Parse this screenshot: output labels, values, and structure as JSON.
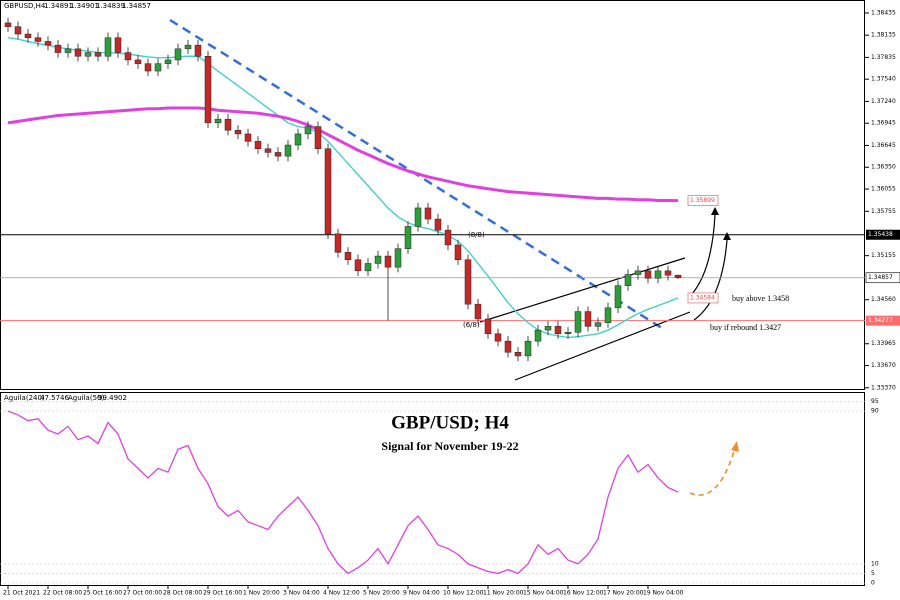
{
  "chart_data": [
    {
      "type": "candlestick",
      "symbol": "GBPUSD,H4",
      "categories": [
        "21 Oct 2021",
        null,
        null,
        null,
        "22 Oct 08:00",
        null,
        null,
        null,
        "25 Oct 16:00",
        null,
        null,
        null,
        "27 Oct 00:00",
        null,
        null,
        null,
        "28 Oct 08:00",
        null,
        null,
        null,
        "29 Oct 16:00",
        null,
        null,
        null,
        "1 Nov 20:00",
        null,
        null,
        null,
        "3 Nov 04:00",
        null,
        null,
        null,
        "4 Nov 12:00",
        null,
        null,
        null,
        "5 Nov 20:00",
        null,
        null,
        null,
        "9 Nov 04:00",
        null,
        null,
        null,
        "10 Nov 12:00",
        null,
        null,
        null,
        "11 Nov 20:00",
        null,
        null,
        null,
        "15 Nov 04:00",
        null,
        null,
        null,
        "16 Nov 12:00",
        null,
        null,
        null,
        "17 Nov 20:00",
        null,
        null,
        null,
        "19 Nov 04:00",
        null,
        null,
        null
      ],
      "open": [
        1.383,
        1.3825,
        1.3815,
        1.381,
        1.3805,
        1.38,
        1.379,
        1.3795,
        1.3785,
        1.379,
        1.3785,
        1.381,
        1.379,
        1.378,
        1.3775,
        1.3765,
        1.3775,
        1.378,
        1.3795,
        1.38,
        1.3785,
        1.3695,
        1.37,
        1.3685,
        1.368,
        1.367,
        1.366,
        1.3655,
        1.365,
        1.3665,
        1.368,
        1.369,
        1.366,
        1.3545,
        1.352,
        1.351,
        1.3495,
        1.3505,
        1.3515,
        1.35,
        1.3525,
        1.3555,
        1.358,
        1.3565,
        1.355,
        1.353,
        1.351,
        1.345,
        1.343,
        1.341,
        1.34,
        1.3385,
        1.338,
        1.34,
        1.3415,
        1.342,
        1.341,
        1.3412,
        1.344,
        1.342,
        1.3425,
        1.3445,
        1.3475,
        1.349,
        1.3495,
        1.3485,
        1.3495,
        1.34891
      ],
      "high": [
        1.3837,
        1.3832,
        1.3822,
        1.3817,
        1.3812,
        1.3807,
        1.3802,
        1.3802,
        1.3797,
        1.3797,
        1.3817,
        1.3817,
        1.3797,
        1.3787,
        1.3782,
        1.3782,
        1.3787,
        1.3802,
        1.3807,
        1.3807,
        1.3792,
        1.3707,
        1.3707,
        1.3692,
        1.3687,
        1.3677,
        1.3667,
        1.3662,
        1.3672,
        1.3687,
        1.3697,
        1.3697,
        1.3667,
        1.3552,
        1.3527,
        1.3517,
        1.3512,
        1.3522,
        1.3522,
        1.3532,
        1.3562,
        1.3587,
        1.3587,
        1.3572,
        1.3557,
        1.3537,
        1.3517,
        1.3457,
        1.3437,
        1.3417,
        1.3407,
        1.3392,
        1.3407,
        1.3422,
        1.3427,
        1.3427,
        1.3419,
        1.3447,
        1.3447,
        1.3432,
        1.3452,
        1.3482,
        1.3497,
        1.3502,
        1.3502,
        1.3502,
        1.3502,
        1.34901
      ],
      "low": [
        1.3818,
        1.3808,
        1.3803,
        1.3798,
        1.3793,
        1.3783,
        1.3783,
        1.3778,
        1.3778,
        1.3778,
        1.3778,
        1.3783,
        1.3773,
        1.3768,
        1.3758,
        1.3758,
        1.3768,
        1.3773,
        1.3788,
        1.3778,
        1.3688,
        1.3688,
        1.3678,
        1.3673,
        1.3663,
        1.3653,
        1.3648,
        1.3643,
        1.3643,
        1.3658,
        1.3673,
        1.3653,
        1.3538,
        1.3513,
        1.3503,
        1.3488,
        1.3488,
        1.3498,
        1.3428,
        1.3493,
        1.3518,
        1.3548,
        1.3558,
        1.3543,
        1.3523,
        1.3503,
        1.3443,
        1.3423,
        1.3403,
        1.3393,
        1.3378,
        1.3373,
        1.3373,
        1.3393,
        1.3408,
        1.3403,
        1.3403,
        1.3405,
        1.3413,
        1.3413,
        1.3418,
        1.3438,
        1.3468,
        1.3483,
        1.3478,
        1.3478,
        1.3482,
        1.34839
      ],
      "close": [
        1.3825,
        1.3815,
        1.381,
        1.3805,
        1.38,
        1.379,
        1.3795,
        1.3785,
        1.379,
        1.3785,
        1.381,
        1.379,
        1.378,
        1.3775,
        1.3765,
        1.3775,
        1.378,
        1.3795,
        1.38,
        1.3785,
        1.3695,
        1.37,
        1.3685,
        1.368,
        1.367,
        1.366,
        1.3655,
        1.365,
        1.3665,
        1.368,
        1.369,
        1.366,
        1.3545,
        1.352,
        1.351,
        1.3495,
        1.3505,
        1.3515,
        1.35,
        1.3525,
        1.3555,
        1.358,
        1.3565,
        1.355,
        1.353,
        1.351,
        1.345,
        1.343,
        1.341,
        1.34,
        1.3385,
        1.338,
        1.34,
        1.3415,
        1.342,
        1.341,
        1.3412,
        1.344,
        1.342,
        1.3425,
        1.3445,
        1.3475,
        1.349,
        1.3495,
        1.3485,
        1.3495,
        1.34891,
        1.34857
      ],
      "up_color": "#2e9e3a",
      "down_color": "#c62828",
      "overlays": [
        {
          "color": "#45cfcf",
          "values": [
            1.381,
            1.3808,
            1.3805,
            1.3802,
            1.38,
            1.3797,
            1.3795,
            1.3793,
            1.3792,
            1.379,
            1.379,
            1.3789,
            1.3788,
            1.3786,
            1.3784,
            1.3783,
            1.3783,
            1.3784,
            1.3785,
            1.3785,
            1.3775,
            1.3765,
            1.3755,
            1.3745,
            1.3735,
            1.3725,
            1.3715,
            1.3705,
            1.3695,
            1.369,
            1.3688,
            1.3682,
            1.367,
            1.3655,
            1.364,
            1.3625,
            1.361,
            1.3595,
            1.358,
            1.3568,
            1.356,
            1.3555,
            1.3552,
            1.3548,
            1.3543,
            1.3535,
            1.3522,
            1.3505,
            1.3488,
            1.347,
            1.3452,
            1.3437,
            1.3425,
            1.3415,
            1.341,
            1.3407,
            1.3405,
            1.3406,
            1.3408,
            1.341,
            1.3415,
            1.3422,
            1.343,
            1.3437,
            1.3443,
            1.3448,
            1.3453,
            1.34584
          ]
        },
        {
          "color": "#e040e0",
          "values": [
            1.3695,
            1.3697,
            1.3699,
            1.3701,
            1.3703,
            1.3705,
            1.3706,
            1.3707,
            1.3708,
            1.3709,
            1.371,
            1.3711,
            1.3712,
            1.3713,
            1.3714,
            1.3714,
            1.3715,
            1.3715,
            1.3715,
            1.3715,
            1.3714,
            1.3712,
            1.3711,
            1.371,
            1.3709,
            1.3708,
            1.3706,
            1.3704,
            1.3701,
            1.3697,
            1.3692,
            1.3686,
            1.3679,
            1.3672,
            1.3665,
            1.3658,
            1.3652,
            1.3646,
            1.364,
            1.3635,
            1.363,
            1.3626,
            1.3622,
            1.3619,
            1.3616,
            1.3613,
            1.361,
            1.3608,
            1.3606,
            1.3604,
            1.3602,
            1.3601,
            1.36,
            1.3599,
            1.3598,
            1.3597,
            1.3596,
            1.3595,
            1.3594,
            1.3593,
            1.3593,
            1.3592,
            1.3592,
            1.3591,
            1.3591,
            1.359,
            1.359,
            1.35899
          ]
        }
      ],
      "ylim": [
        1.3334,
        1.3861
      ],
      "yticks": [
        1.38435,
        1.38135,
        1.37835,
        {
          "value": 1.3754,
          "label": "1.37540"
        },
        {
          "value": 1.3724,
          "label": "1.37240"
        },
        1.36945,
        1.36645,
        {
          "value": 1.3635,
          "label": "1.36350"
        },
        1.36055,
        1.35755,
        1.35155,
        {
          "value": 1.3456,
          "label": "1.34560"
        },
        1.33965,
        {
          "value": 1.3367,
          "label": "1.33670"
        },
        {
          "value": 1.3337,
          "label": "1.33370"
        }
      ],
      "levels": [
        {
          "value": 1.35438,
          "color": "#000000"
        },
        {
          "value": 1.34277,
          "color": "#ff6b6b"
        }
      ],
      "murrey_labels": [
        "(8/8)",
        "(6/8)"
      ],
      "annotations": [
        "buy above 1.3458",
        "buy if rebound 1.3427"
      ]
    },
    {
      "type": "line",
      "name": "Aguila(240)",
      "color": "#e040e0",
      "values": [
        90,
        88,
        85,
        86,
        80,
        78,
        82,
        75,
        77,
        73,
        84,
        78,
        65,
        60,
        55,
        60,
        58,
        70,
        72,
        60,
        52,
        40,
        35,
        38,
        32,
        30,
        28,
        35,
        40,
        45,
        38,
        30,
        18,
        10,
        5,
        8,
        12,
        18,
        10,
        20,
        30,
        35,
        28,
        20,
        18,
        15,
        10,
        8,
        6,
        5,
        7,
        5,
        10,
        20,
        15,
        18,
        12,
        10,
        15,
        23,
        45,
        60,
        67,
        58,
        62,
        55,
        50,
        47.5746
      ],
      "second_name": "Aguila(50)",
      "second_value": 99.4902,
      "ylim": [
        0,
        100
      ],
      "yticks": [
        0,
        5,
        10,
        90,
        95
      ],
      "title": "GBP/USD; H4",
      "subtitle": "Signal for November 19-22"
    }
  ]
}
